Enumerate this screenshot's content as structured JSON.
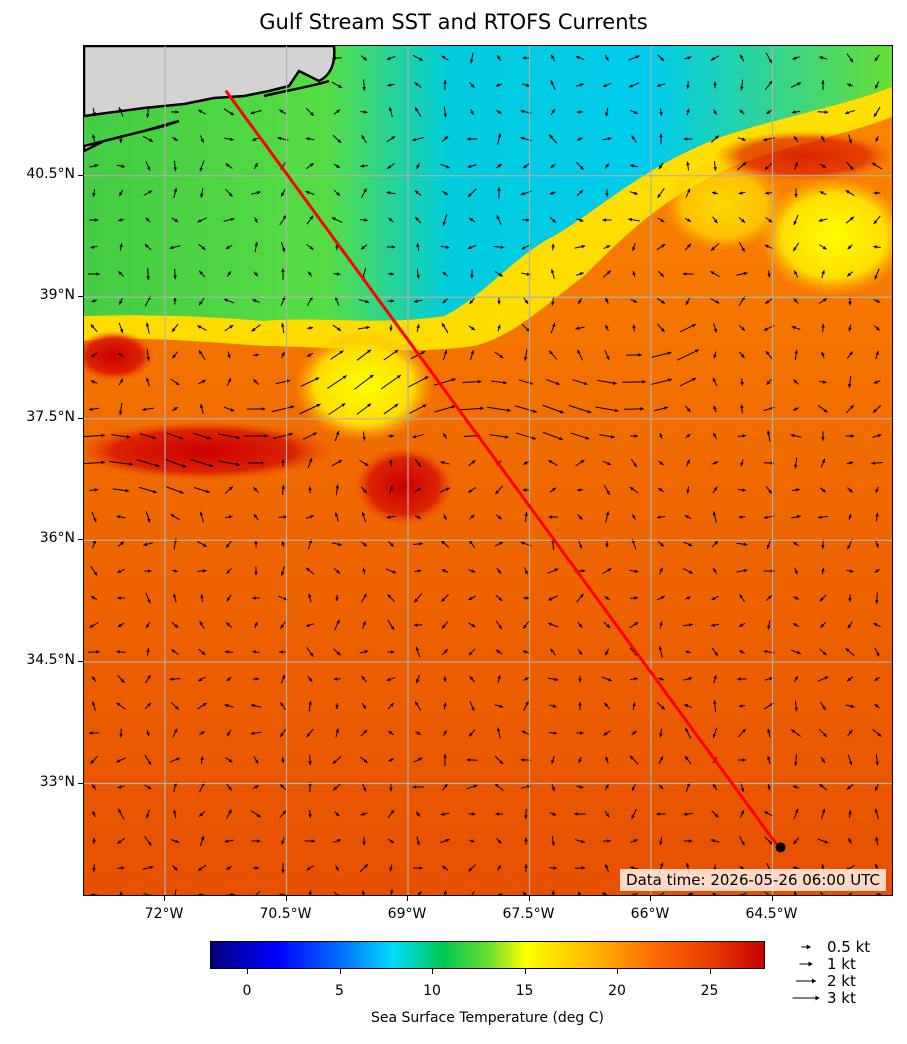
{
  "title": "Gulf Stream SST and RTOFS Currents",
  "map": {
    "lat_labels": [
      "40.5°N",
      "39°N",
      "37.5°N",
      "36°N",
      "34.5°N",
      "33°N"
    ],
    "lon_labels": [
      "72°W",
      "70.5°W",
      "69°W",
      "67.5°W",
      "66°W",
      "64.5°W"
    ],
    "lat_range": [
      31.6,
      42.1
    ],
    "lon_range": [
      -73.0,
      -63.0
    ],
    "land_color": "#d3d3d3",
    "gridline_color": "#b0b0b0",
    "route_color": "#ff0000",
    "route": [
      {
        "lon": -71.25,
        "lat": 41.55
      },
      {
        "lon": -64.45,
        "lat": 32.25
      }
    ],
    "data_time": "Data time: 2026-05-26 06:00 UTC"
  },
  "colorbar": {
    "title": "Sea Surface Temperature (deg C)",
    "range": [
      -2,
      28
    ],
    "ticks": [
      "0",
      "5",
      "10",
      "15",
      "20",
      "25"
    ],
    "tick_values": [
      0,
      5,
      10,
      15,
      20,
      25
    ]
  },
  "current_key": [
    {
      "label": "0.5 kt",
      "speed": 0.5
    },
    {
      "label": "1 kt",
      "speed": 1
    },
    {
      "label": "2 kt",
      "speed": 2
    },
    {
      "label": "3 kt",
      "speed": 3
    }
  ]
}
